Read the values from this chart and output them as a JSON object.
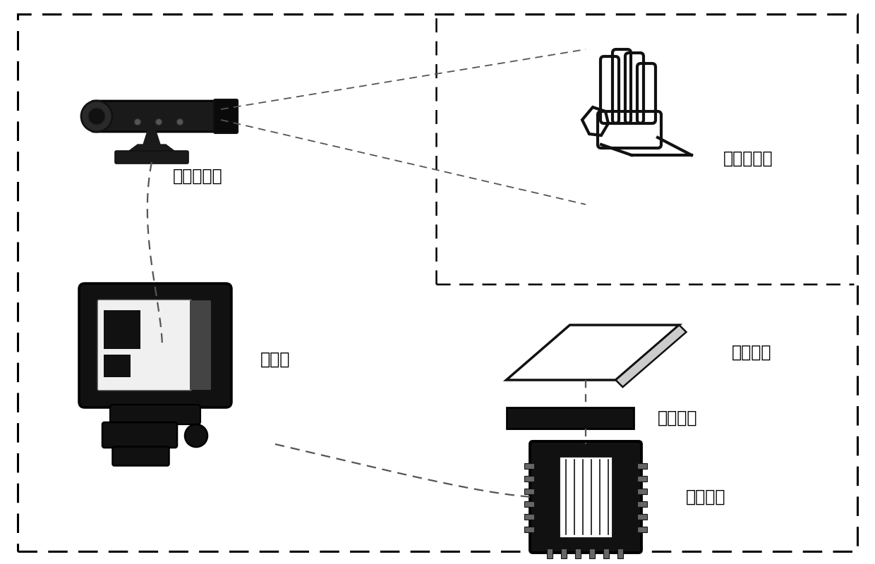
{
  "bg_color": "#ffffff",
  "labels": {
    "camera": "深度摄像头",
    "hand": "操作者手部",
    "computer": "上位机",
    "array": "超声阵列",
    "driver": "驱动电路",
    "controller": "主控制器"
  },
  "font_size": 16,
  "fig_width": 12.4,
  "fig_height": 8.0,
  "dpi": 100
}
